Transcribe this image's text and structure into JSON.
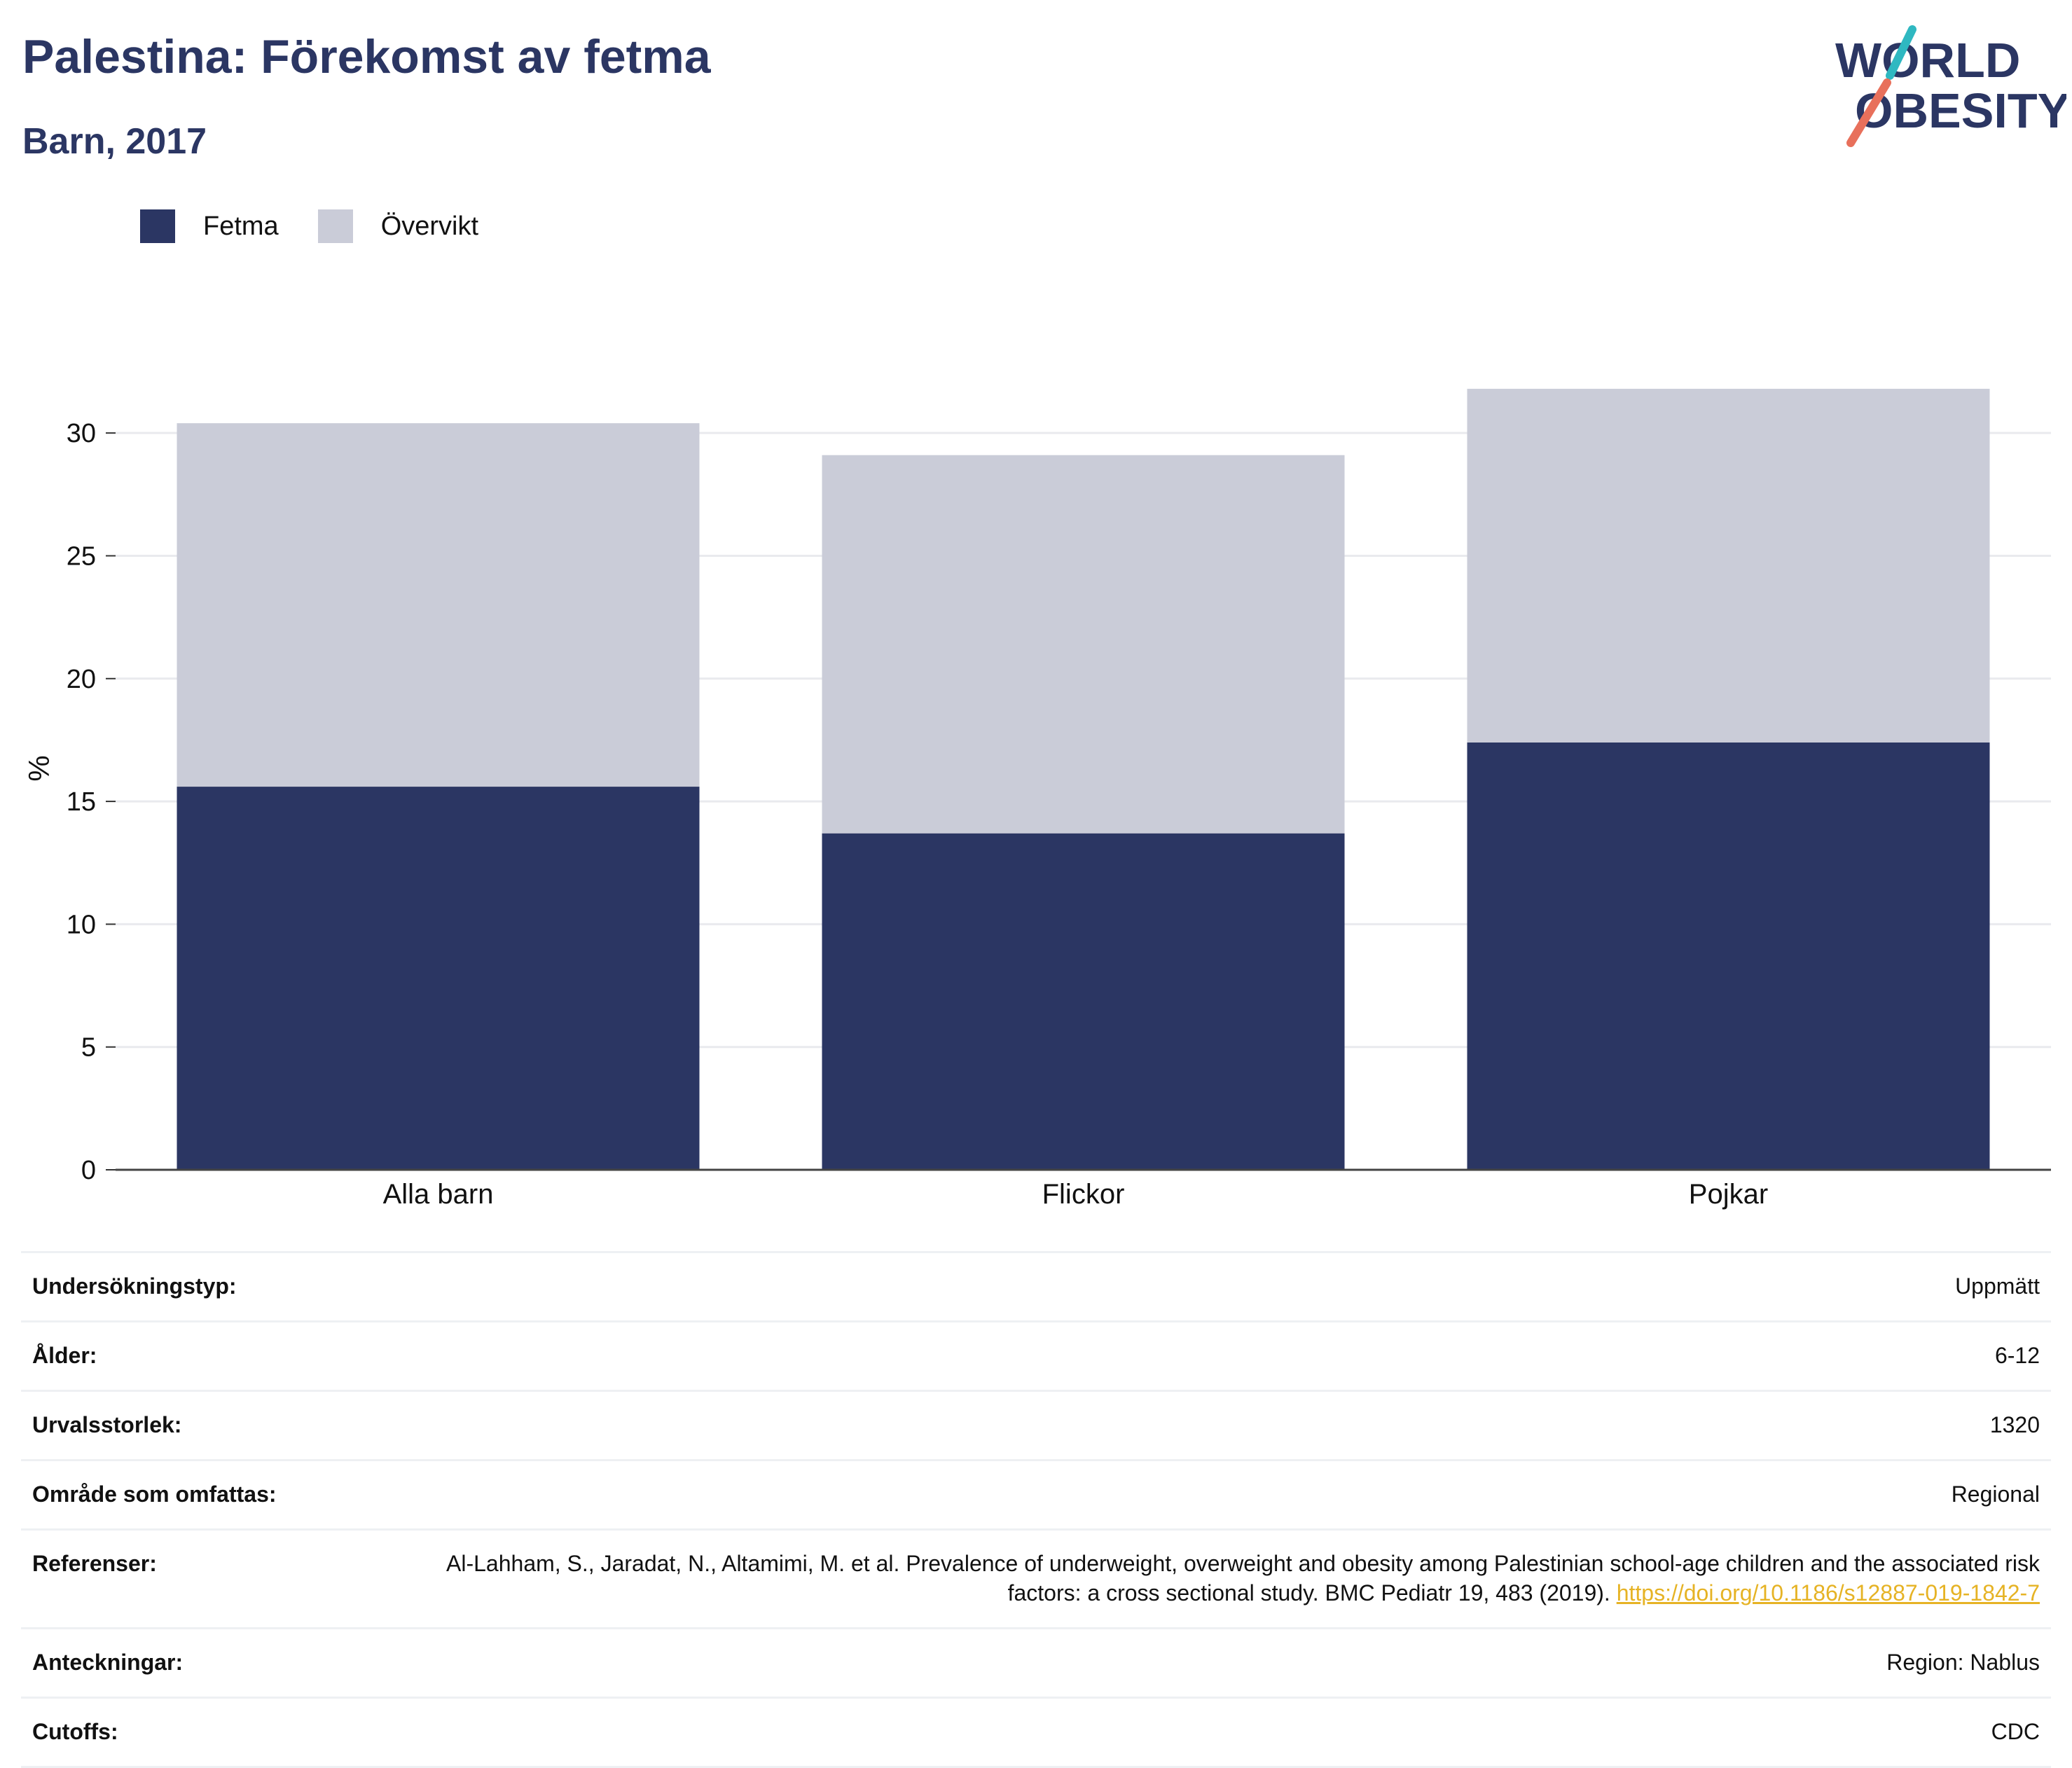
{
  "header": {
    "title": "Palestina: Förekomst av fetma",
    "subtitle": "Barn, 2017"
  },
  "logo": {
    "line1": "WORLD",
    "line2": "OBESITY",
    "colors": {
      "text": "#2b3663",
      "slash_teal": "#2fb8c1",
      "slash_coral": "#e8705b"
    }
  },
  "legend": {
    "items": [
      {
        "label": "Fetma",
        "color": "#2b3663"
      },
      {
        "label": "Övervikt",
        "color": "#caccd8"
      }
    ]
  },
  "chart_data": {
    "type": "bar",
    "stacked": true,
    "categories": [
      "Alla barn",
      "Flickor",
      "Pojkar"
    ],
    "series": [
      {
        "name": "Fetma",
        "values": [
          15.6,
          13.7,
          17.4
        ],
        "color": "#2b3663"
      },
      {
        "name": "Övervikt",
        "values": [
          14.8,
          15.4,
          14.4
        ],
        "color": "#caccd8"
      }
    ],
    "ylabel": "%",
    "ylim": [
      0,
      32.8
    ],
    "yticks": [
      0,
      5,
      10,
      15,
      20,
      25,
      30
    ],
    "grid": true,
    "legend_position": "top-left"
  },
  "info": {
    "rows": [
      {
        "label": "Undersökningstyp:",
        "value": "Uppmätt"
      },
      {
        "label": "Ålder:",
        "value": "6-12"
      },
      {
        "label": "Urvalsstorlek:",
        "value": "1320"
      },
      {
        "label": "Område som omfattas:",
        "value": "Regional"
      },
      {
        "label": "Referenser:",
        "value": "Al-Lahham, S., Jaradat, N., Altamimi, M. et al. Prevalence of underweight, overweight and obesity among Palestinian school-age children and the associated risk factors: a cross sectional study. BMC Pediatr 19, 483 (2019).",
        "link": "https://doi.org/10.1186/s12887-019-1842-7"
      },
      {
        "label": "Anteckningar:",
        "value": "Region: Nablus"
      },
      {
        "label": "Cutoffs:",
        "value": "CDC"
      }
    ]
  }
}
